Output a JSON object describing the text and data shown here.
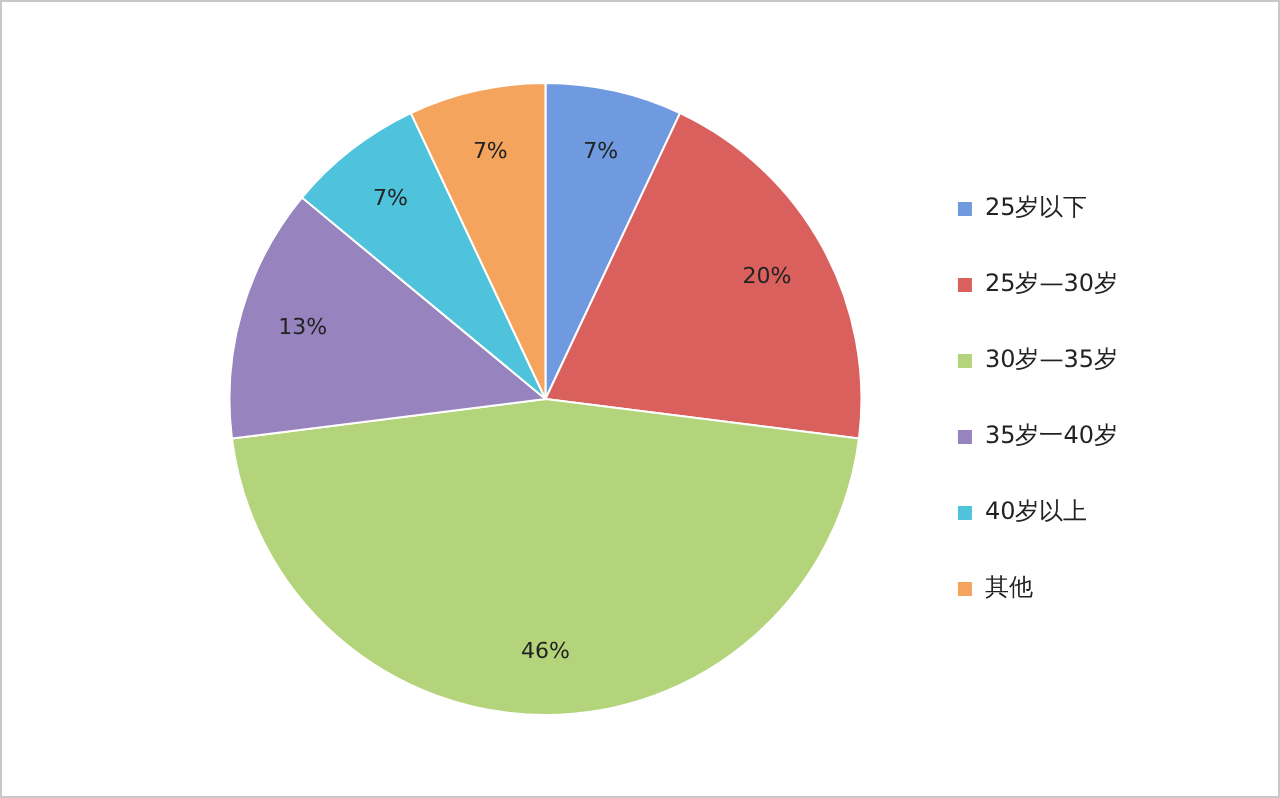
{
  "chart_data": {
    "type": "pie",
    "categories": [
      "25岁以下",
      "25岁—30岁",
      "30岁—35岁",
      "35岁一40岁",
      "40岁以上",
      "其他"
    ],
    "values": [
      7,
      20,
      46,
      13,
      7,
      7
    ],
    "colors": [
      "#6f9ae0",
      "#d9605c",
      "#b3d47a",
      "#9783bd",
      "#4fc3dc",
      "#f5a45e"
    ],
    "value_labels": [
      "7%",
      "20%",
      "46%",
      "13%",
      "7%",
      "7%"
    ],
    "legend": "right"
  }
}
